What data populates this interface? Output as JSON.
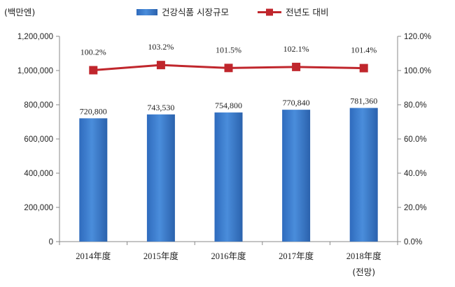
{
  "chart_data": {
    "type": "bar",
    "unit_label": "(백만엔)",
    "categories": [
      "2014年度",
      "2015年度",
      "2016年度",
      "2017年度",
      "2018年度"
    ],
    "category_notes": [
      "",
      "",
      "",
      "",
      "(전망)"
    ],
    "series": [
      {
        "name": "건강식품 시장규모",
        "type": "bar",
        "axis": "left",
        "values": [
          720800,
          743530,
          754800,
          770840,
          781360
        ],
        "value_labels": [
          "720,800",
          "743,530",
          "754,800",
          "770,840",
          "781,360"
        ],
        "color": "#3d7fcf"
      },
      {
        "name": "전년도 대비",
        "type": "line",
        "axis": "right",
        "values": [
          100.2,
          103.2,
          101.5,
          102.1,
          101.4
        ],
        "value_labels": [
          "100.2%",
          "103.2%",
          "101.5%",
          "102.1%",
          "101.4%"
        ],
        "color": "#c0262c"
      }
    ],
    "y_left": {
      "range": [
        0,
        1200000
      ],
      "ticks": [
        0,
        200000,
        400000,
        600000,
        800000,
        1000000,
        1200000
      ],
      "tick_labels": [
        "0",
        "200,000",
        "400,000",
        "600,000",
        "800,000",
        "1,000,000",
        "1,200,000"
      ]
    },
    "y_right": {
      "range": [
        0,
        120
      ],
      "ticks": [
        0,
        20,
        40,
        60,
        80,
        100,
        120
      ],
      "tick_labels": [
        "0.0%",
        "20.0%",
        "40.0%",
        "60.0%",
        "80.0%",
        "100.0%",
        "120.0%"
      ]
    },
    "grid": false,
    "legend_position": "top"
  }
}
